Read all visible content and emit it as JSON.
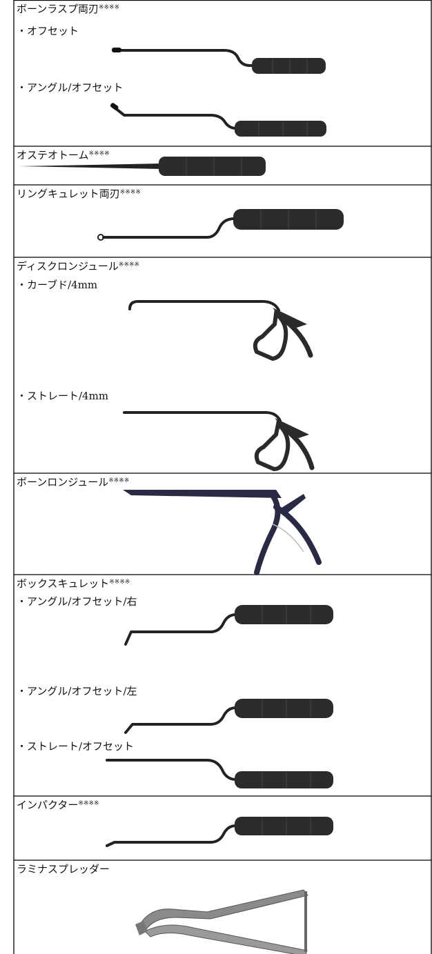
{
  "rows": [
    {
      "title": "ボーンラスプ両刃",
      "note": "※※※※",
      "items": [
        "・オフセット",
        "・アングル/オフセット"
      ]
    },
    {
      "title": "オステオトーム",
      "note": "※※※※"
    },
    {
      "title": "リングキュレット両刃",
      "note": "※※※※"
    },
    {
      "title": "ディスクロンジュール",
      "note": "※※※※",
      "items": [
        "・カーブド/4mm",
        "・ストレート/4mm"
      ]
    },
    {
      "title": "ボーンロンジュール",
      "note": "※※※※"
    },
    {
      "title": "ボックスキュレット",
      "note": "※※※※",
      "items": [
        "・アングル/オフセット/右",
        "・アングル/オフセット/左",
        "・ストレート/オフセット"
      ]
    },
    {
      "title": "インパクター",
      "note": "※※※※"
    },
    {
      "title": "ラミナスプレッダー"
    }
  ]
}
